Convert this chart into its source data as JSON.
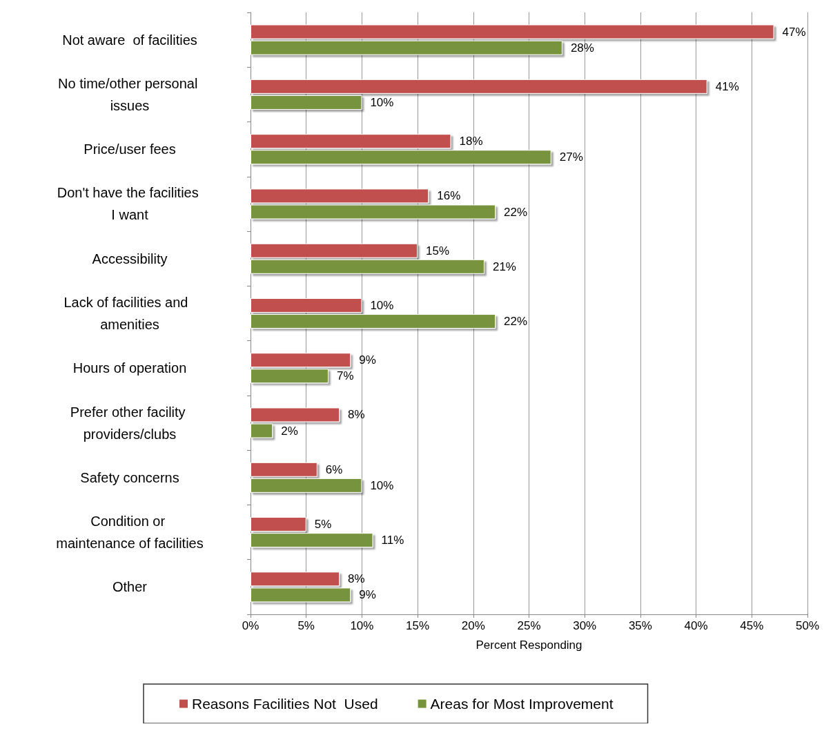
{
  "chart_data": {
    "type": "bar",
    "orientation": "horizontal",
    "xlabel": "Percent Responding",
    "categories": [
      "Not aware  of facilities",
      "No time/other personal issues",
      "Price/user fees",
      "Don't have the facilities I want",
      "Accessibility",
      "Lack of facilities and  amenities",
      "Hours of operation",
      "Prefer other facility providers/clubs",
      "Safety concerns",
      "Condition or maintenance of facilities",
      "Other"
    ],
    "series": [
      {
        "name": "Reasons Facilities Not  Used",
        "color": "#c0504d",
        "values": [
          47,
          41,
          18,
          16,
          15,
          10,
          9,
          8,
          6,
          5,
          8
        ],
        "value_labels": [
          "47%",
          "41%",
          "18%",
          "16%",
          "15%",
          "10%",
          "9%",
          "8%",
          "6%",
          "5%",
          "8%"
        ]
      },
      {
        "name": "Areas for Most Improvement",
        "color": "#77933c",
        "values": [
          28,
          10,
          27,
          22,
          21,
          22,
          7,
          2,
          10,
          11,
          9
        ],
        "value_labels": [
          "28%",
          "10%",
          "27%",
          "22%",
          "21%",
          "22%",
          "7%",
          "2%",
          "10%",
          "11%",
          "9%"
        ]
      }
    ],
    "xlim": [
      0,
      50
    ],
    "xticks": [
      {
        "value": 0,
        "label": "0%"
      },
      {
        "value": 5,
        "label": "5%"
      },
      {
        "value": 10,
        "label": "10%"
      },
      {
        "value": 15,
        "label": "15%"
      },
      {
        "value": 20,
        "label": "20%"
      },
      {
        "value": 25,
        "label": "25%"
      },
      {
        "value": 30,
        "label": "30%"
      },
      {
        "value": 35,
        "label": "35%"
      },
      {
        "value": 40,
        "label": "40%"
      },
      {
        "value": 45,
        "label": "45%"
      },
      {
        "value": 50,
        "label": "50%"
      }
    ],
    "grid": "x",
    "legend": "bottom"
  }
}
